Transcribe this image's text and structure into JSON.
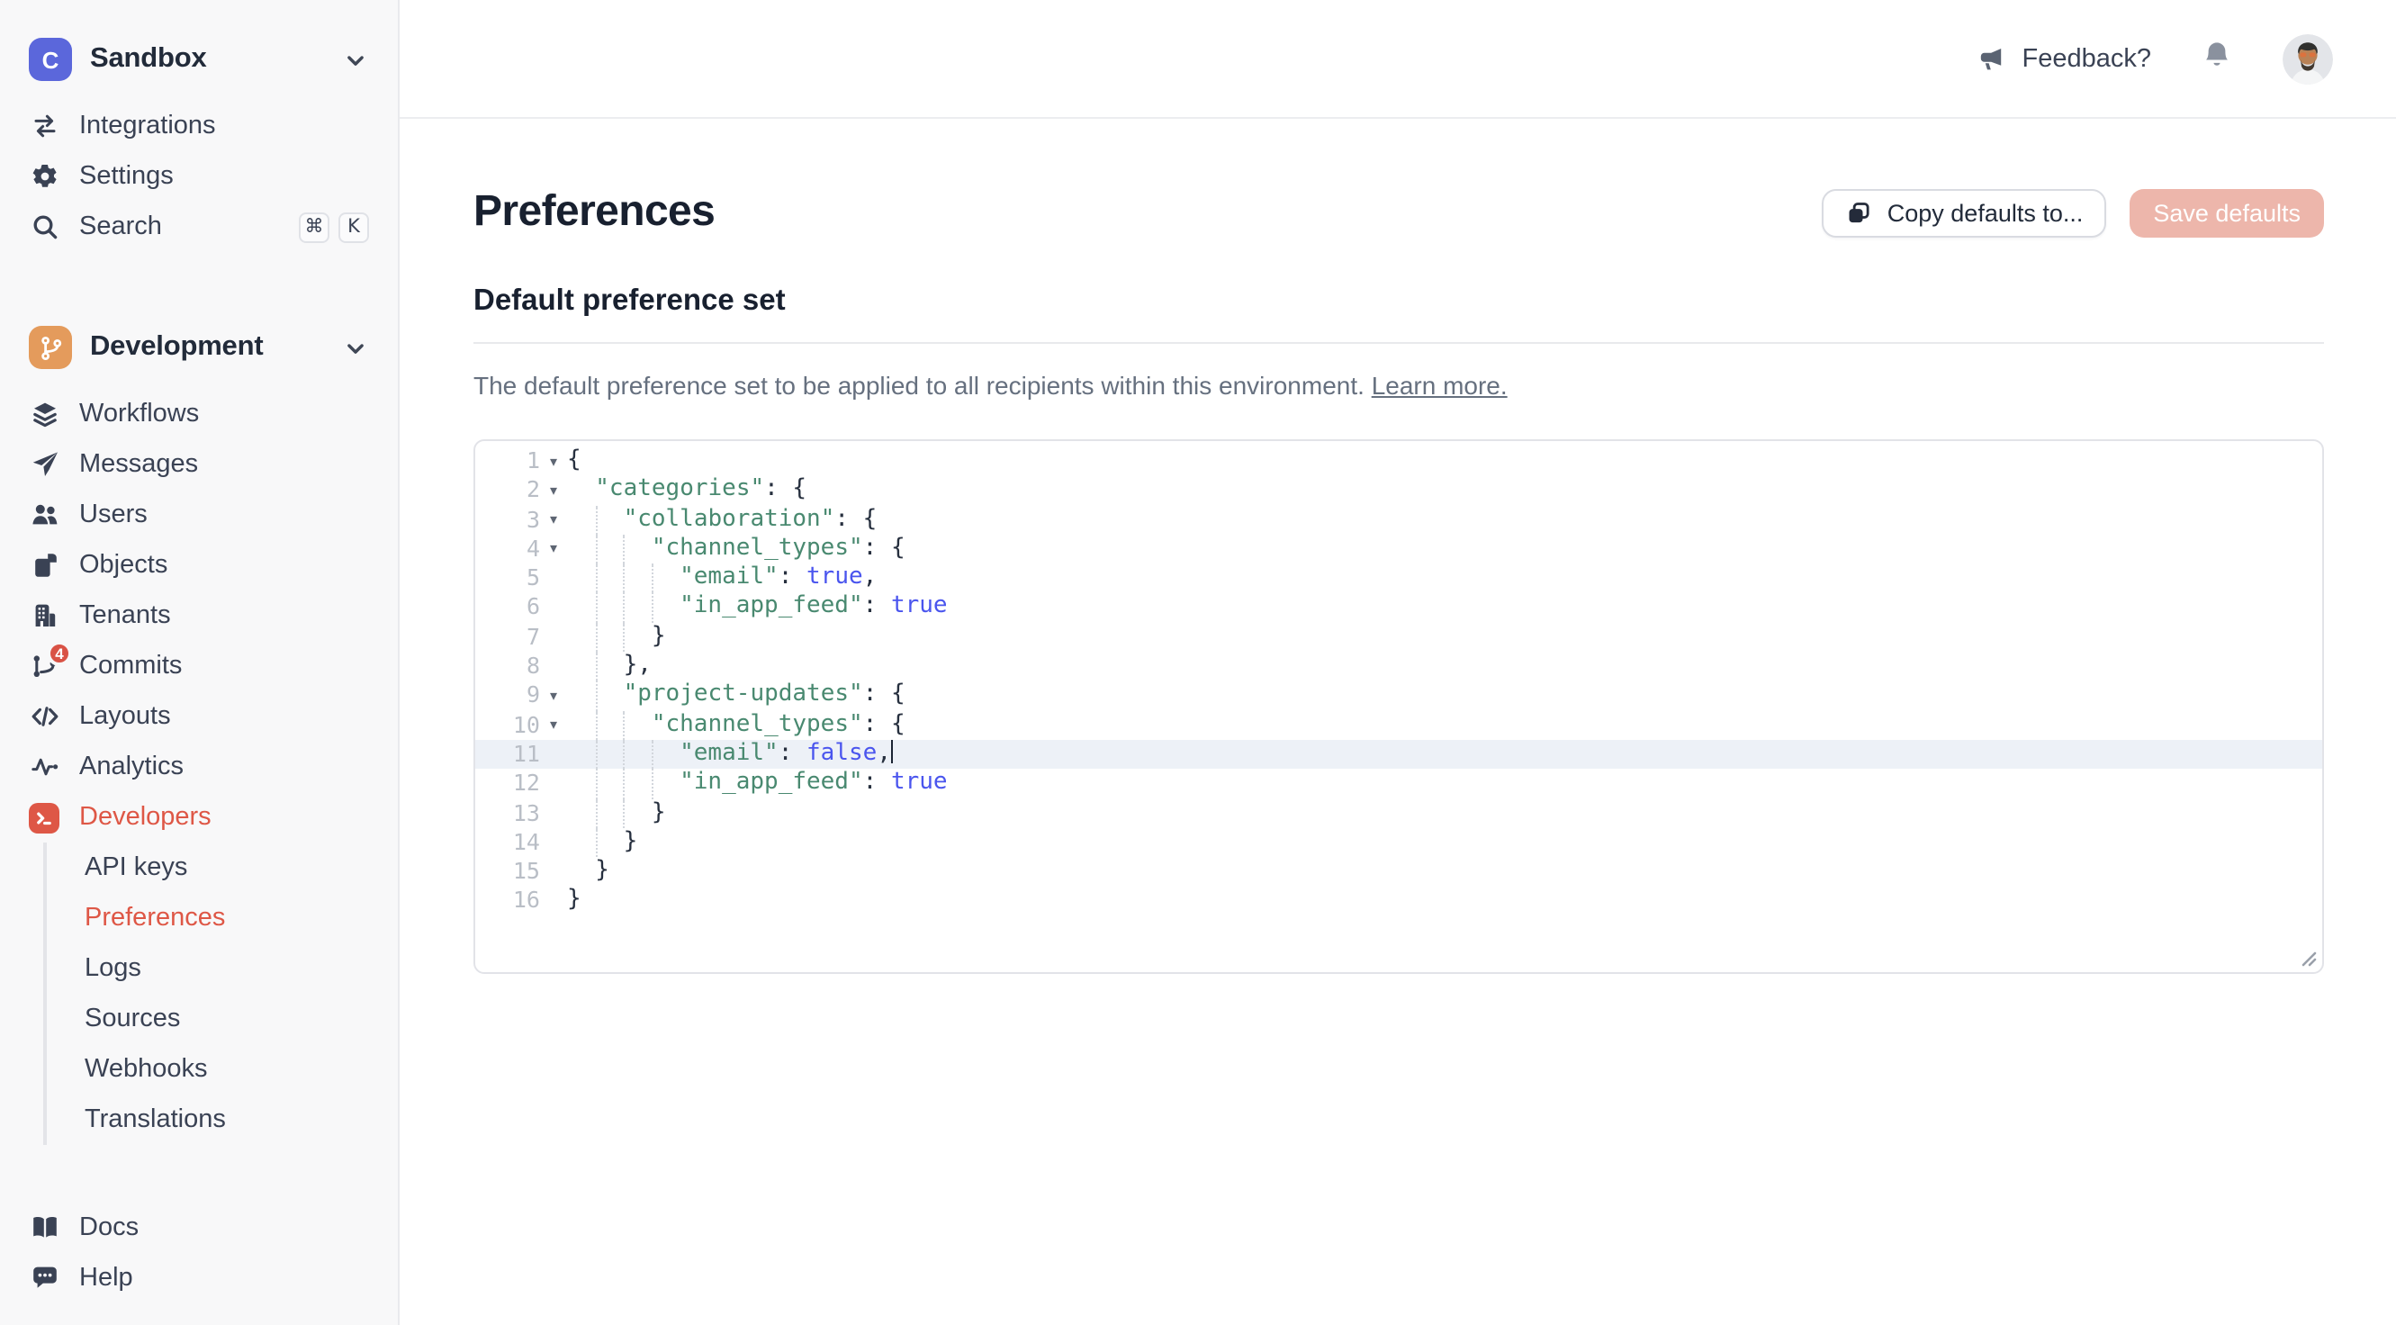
{
  "colors": {
    "accent": "#DE5746",
    "workspace_tile": "#5B67DB",
    "environment_tile": "#E49B5C",
    "save_disabled_bg": "#EDB6AB",
    "badge_red": "#D95245",
    "code_key_green": "#498970",
    "code_bool_blue": "#4A55EE"
  },
  "sidebar": {
    "workspace": {
      "name": "Sandbox",
      "logo_letter": "C",
      "logo_icon": "workspace-logo-icon",
      "chevron": "chevron-down-icon"
    },
    "top_nav": [
      {
        "label": "Integrations",
        "icon": "swap-icon"
      },
      {
        "label": "Settings",
        "icon": "gear-icon"
      },
      {
        "label": "Search",
        "icon": "search-icon",
        "shortcuts": [
          "⌘",
          "K"
        ]
      }
    ],
    "environment": {
      "name": "Development",
      "icon": "git-branch-icon",
      "chevron": "chevron-down-icon"
    },
    "env_nav": [
      {
        "label": "Workflows",
        "icon": "layers-icon"
      },
      {
        "label": "Messages",
        "icon": "paper-plane-icon"
      },
      {
        "label": "Users",
        "icon": "users-icon"
      },
      {
        "label": "Objects",
        "icon": "pages-icon"
      },
      {
        "label": "Tenants",
        "icon": "building-icon"
      },
      {
        "label": "Commits",
        "icon": "git-commit-icon",
        "badge": "4"
      },
      {
        "label": "Layouts",
        "icon": "code-icon"
      },
      {
        "label": "Analytics",
        "icon": "pulse-icon"
      },
      {
        "label": "Developers",
        "icon": "terminal-icon",
        "active": true,
        "tile": true
      }
    ],
    "dev_sub_nav": [
      {
        "label": "API keys"
      },
      {
        "label": "Preferences",
        "active": true
      },
      {
        "label": "Logs"
      },
      {
        "label": "Sources"
      },
      {
        "label": "Webhooks"
      },
      {
        "label": "Translations"
      }
    ],
    "bottom_nav": [
      {
        "label": "Docs",
        "icon": "book-icon"
      },
      {
        "label": "Help",
        "icon": "chat-icon"
      }
    ]
  },
  "topbar": {
    "feedback_label": "Feedback?",
    "feedback_icon": "megaphone-icon",
    "notifications_icon": "bell-icon",
    "avatar": "user-avatar"
  },
  "page": {
    "title": "Preferences",
    "copy_button_label": "Copy defaults to...",
    "save_button_label": "Save defaults",
    "section_title": "Default preference set",
    "description": "The default preference set to be applied to all recipients within this environment.",
    "learn_more_label": "Learn more."
  },
  "editor": {
    "active_line": 11,
    "lines": [
      {
        "n": 1,
        "fold": true,
        "indent": 0,
        "tokens": [
          [
            "p",
            "{"
          ]
        ]
      },
      {
        "n": 2,
        "fold": true,
        "indent": 2,
        "tokens": [
          [
            "k",
            "\"categories\""
          ],
          [
            "p",
            ": {"
          ]
        ]
      },
      {
        "n": 3,
        "fold": true,
        "indent": 4,
        "tokens": [
          [
            "k",
            "\"collaboration\""
          ],
          [
            "p",
            ": {"
          ]
        ]
      },
      {
        "n": 4,
        "fold": true,
        "indent": 6,
        "tokens": [
          [
            "k",
            "\"channel_types\""
          ],
          [
            "p",
            ": {"
          ]
        ]
      },
      {
        "n": 5,
        "fold": false,
        "indent": 8,
        "tokens": [
          [
            "k",
            "\"email\""
          ],
          [
            "p",
            ": "
          ],
          [
            "b",
            "true"
          ],
          [
            "p",
            ","
          ]
        ]
      },
      {
        "n": 6,
        "fold": false,
        "indent": 8,
        "tokens": [
          [
            "k",
            "\"in_app_feed\""
          ],
          [
            "p",
            ": "
          ],
          [
            "b",
            "true"
          ]
        ]
      },
      {
        "n": 7,
        "fold": false,
        "indent": 6,
        "tokens": [
          [
            "p",
            "}"
          ]
        ]
      },
      {
        "n": 8,
        "fold": false,
        "indent": 4,
        "tokens": [
          [
            "p",
            "},"
          ]
        ]
      },
      {
        "n": 9,
        "fold": true,
        "indent": 4,
        "tokens": [
          [
            "k",
            "\"project-updates\""
          ],
          [
            "p",
            ": {"
          ]
        ]
      },
      {
        "n": 10,
        "fold": true,
        "indent": 6,
        "tokens": [
          [
            "k",
            "\"channel_types\""
          ],
          [
            "p",
            ": {"
          ]
        ]
      },
      {
        "n": 11,
        "fold": false,
        "indent": 8,
        "cursor": true,
        "tokens": [
          [
            "k",
            "\"email\""
          ],
          [
            "p",
            ": "
          ],
          [
            "b",
            "false"
          ],
          [
            "p",
            ","
          ]
        ]
      },
      {
        "n": 12,
        "fold": false,
        "indent": 8,
        "tokens": [
          [
            "k",
            "\"in_app_feed\""
          ],
          [
            "p",
            ": "
          ],
          [
            "b",
            "true"
          ]
        ]
      },
      {
        "n": 13,
        "fold": false,
        "indent": 6,
        "tokens": [
          [
            "p",
            "}"
          ]
        ]
      },
      {
        "n": 14,
        "fold": false,
        "indent": 4,
        "tokens": [
          [
            "p",
            "}"
          ]
        ]
      },
      {
        "n": 15,
        "fold": false,
        "indent": 2,
        "tokens": [
          [
            "p",
            "}"
          ]
        ]
      },
      {
        "n": 16,
        "fold": false,
        "indent": 0,
        "tokens": [
          [
            "p",
            "}"
          ]
        ]
      }
    ]
  }
}
